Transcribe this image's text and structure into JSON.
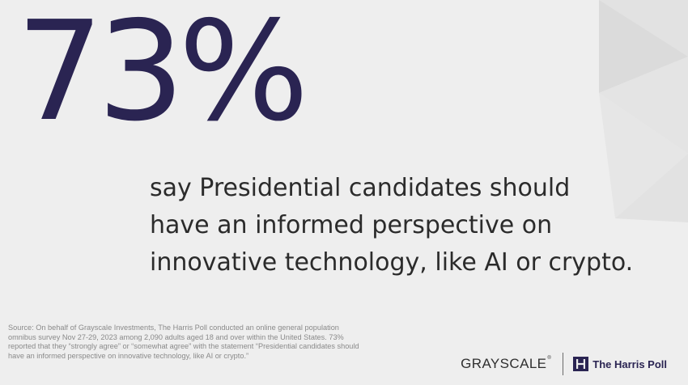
{
  "headline": {
    "stat": "73%"
  },
  "statement": {
    "lines": [
      "say Presidential candidates should",
      "have an informed perspective on",
      "innovative technology, like AI or crypto."
    ]
  },
  "source": {
    "text": "Source: On behalf of Grayscale Investments, The Harris Poll conducted an online general population omnibus survey Nov 27-29, 2023 among 2,090 adults aged 18 and over within the United States. 73% reported that they “strongly agree” or “somewhat agree” with the statement “Presidential candidates should have an informed perspective on innovative technology, like AI or crypto.”"
  },
  "logos": {
    "grayscale": "GRAYSCALE",
    "grayscale_mark": "®",
    "harris": "The Harris Poll",
    "harris_icon": "harris-poll-icon"
  },
  "colors": {
    "background": "#eeeeee",
    "stat": "#2a2452",
    "statement": "#2b2b2b",
    "source": "#8a8a8a",
    "decor_light": "#e3e3e3",
    "decor_dark": "#d7d7d7"
  }
}
